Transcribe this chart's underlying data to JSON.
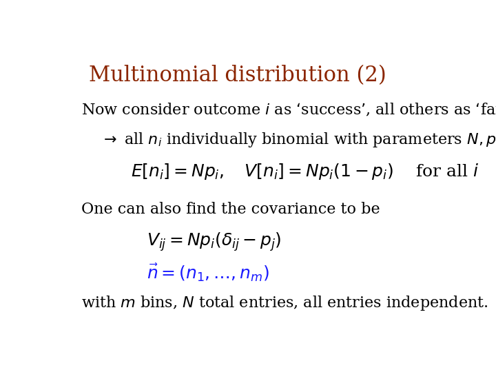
{
  "title": "Multinomial distribution (2)",
  "title_color": "#8B2500",
  "title_fontsize": 22,
  "background_color": "#ffffff",
  "text_color": "#000000",
  "blue_color": "#1a1aff",
  "line1": "Now consider outcome $i$ as ‘success’, all others as ‘failure’.",
  "line2": "$\\rightarrow$ all $n_i$ individually binomial with parameters $N, p_i$",
  "formula1": "$E[n_i] = Np_i, \\quad V[n_i] = Np_i(1 - p_i) \\quad$ for all $i$",
  "line3": "One can also find the covariance to be",
  "formula2": "$V_{ij} = Np_i(\\delta_{ij} - p_j)$",
  "formula3": "$\\vec{n} = (n_1, \\ldots, n_m)$",
  "line4": "with $m$ bins, $N$ total entries, all entries independent.",
  "body_fontsize": 16,
  "formula_fontsize": 18
}
